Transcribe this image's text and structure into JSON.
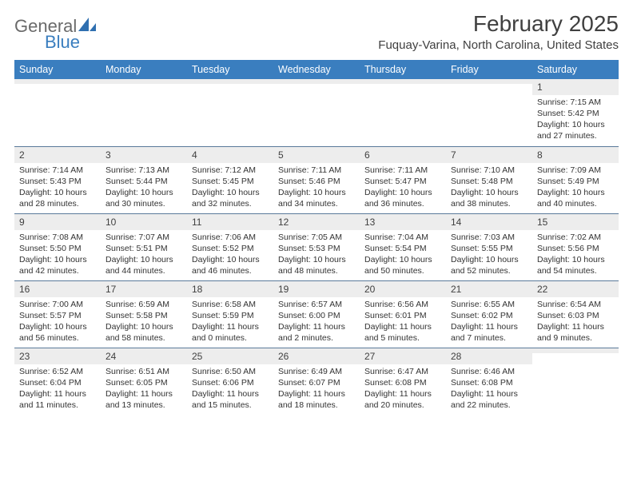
{
  "brand": {
    "part1": "General",
    "part2": "Blue"
  },
  "title": "February 2025",
  "location": "Fuquay-Varina, North Carolina, United States",
  "colors": {
    "header_bg": "#3a7ebf",
    "header_text": "#ffffff",
    "daynum_bg": "#ededed",
    "cell_border": "#5a7a9a",
    "body_text": "#333333",
    "title_text": "#404040"
  },
  "dow": [
    "Sunday",
    "Monday",
    "Tuesday",
    "Wednesday",
    "Thursday",
    "Friday",
    "Saturday"
  ],
  "weeks": [
    [
      {
        "n": "",
        "sunrise": "",
        "sunset": "",
        "daylight": ""
      },
      {
        "n": "",
        "sunrise": "",
        "sunset": "",
        "daylight": ""
      },
      {
        "n": "",
        "sunrise": "",
        "sunset": "",
        "daylight": ""
      },
      {
        "n": "",
        "sunrise": "",
        "sunset": "",
        "daylight": ""
      },
      {
        "n": "",
        "sunrise": "",
        "sunset": "",
        "daylight": ""
      },
      {
        "n": "",
        "sunrise": "",
        "sunset": "",
        "daylight": ""
      },
      {
        "n": "1",
        "sunrise": "Sunrise: 7:15 AM",
        "sunset": "Sunset: 5:42 PM",
        "daylight": "Daylight: 10 hours and 27 minutes."
      }
    ],
    [
      {
        "n": "2",
        "sunrise": "Sunrise: 7:14 AM",
        "sunset": "Sunset: 5:43 PM",
        "daylight": "Daylight: 10 hours and 28 minutes."
      },
      {
        "n": "3",
        "sunrise": "Sunrise: 7:13 AM",
        "sunset": "Sunset: 5:44 PM",
        "daylight": "Daylight: 10 hours and 30 minutes."
      },
      {
        "n": "4",
        "sunrise": "Sunrise: 7:12 AM",
        "sunset": "Sunset: 5:45 PM",
        "daylight": "Daylight: 10 hours and 32 minutes."
      },
      {
        "n": "5",
        "sunrise": "Sunrise: 7:11 AM",
        "sunset": "Sunset: 5:46 PM",
        "daylight": "Daylight: 10 hours and 34 minutes."
      },
      {
        "n": "6",
        "sunrise": "Sunrise: 7:11 AM",
        "sunset": "Sunset: 5:47 PM",
        "daylight": "Daylight: 10 hours and 36 minutes."
      },
      {
        "n": "7",
        "sunrise": "Sunrise: 7:10 AM",
        "sunset": "Sunset: 5:48 PM",
        "daylight": "Daylight: 10 hours and 38 minutes."
      },
      {
        "n": "8",
        "sunrise": "Sunrise: 7:09 AM",
        "sunset": "Sunset: 5:49 PM",
        "daylight": "Daylight: 10 hours and 40 minutes."
      }
    ],
    [
      {
        "n": "9",
        "sunrise": "Sunrise: 7:08 AM",
        "sunset": "Sunset: 5:50 PM",
        "daylight": "Daylight: 10 hours and 42 minutes."
      },
      {
        "n": "10",
        "sunrise": "Sunrise: 7:07 AM",
        "sunset": "Sunset: 5:51 PM",
        "daylight": "Daylight: 10 hours and 44 minutes."
      },
      {
        "n": "11",
        "sunrise": "Sunrise: 7:06 AM",
        "sunset": "Sunset: 5:52 PM",
        "daylight": "Daylight: 10 hours and 46 minutes."
      },
      {
        "n": "12",
        "sunrise": "Sunrise: 7:05 AM",
        "sunset": "Sunset: 5:53 PM",
        "daylight": "Daylight: 10 hours and 48 minutes."
      },
      {
        "n": "13",
        "sunrise": "Sunrise: 7:04 AM",
        "sunset": "Sunset: 5:54 PM",
        "daylight": "Daylight: 10 hours and 50 minutes."
      },
      {
        "n": "14",
        "sunrise": "Sunrise: 7:03 AM",
        "sunset": "Sunset: 5:55 PM",
        "daylight": "Daylight: 10 hours and 52 minutes."
      },
      {
        "n": "15",
        "sunrise": "Sunrise: 7:02 AM",
        "sunset": "Sunset: 5:56 PM",
        "daylight": "Daylight: 10 hours and 54 minutes."
      }
    ],
    [
      {
        "n": "16",
        "sunrise": "Sunrise: 7:00 AM",
        "sunset": "Sunset: 5:57 PM",
        "daylight": "Daylight: 10 hours and 56 minutes."
      },
      {
        "n": "17",
        "sunrise": "Sunrise: 6:59 AM",
        "sunset": "Sunset: 5:58 PM",
        "daylight": "Daylight: 10 hours and 58 minutes."
      },
      {
        "n": "18",
        "sunrise": "Sunrise: 6:58 AM",
        "sunset": "Sunset: 5:59 PM",
        "daylight": "Daylight: 11 hours and 0 minutes."
      },
      {
        "n": "19",
        "sunrise": "Sunrise: 6:57 AM",
        "sunset": "Sunset: 6:00 PM",
        "daylight": "Daylight: 11 hours and 2 minutes."
      },
      {
        "n": "20",
        "sunrise": "Sunrise: 6:56 AM",
        "sunset": "Sunset: 6:01 PM",
        "daylight": "Daylight: 11 hours and 5 minutes."
      },
      {
        "n": "21",
        "sunrise": "Sunrise: 6:55 AM",
        "sunset": "Sunset: 6:02 PM",
        "daylight": "Daylight: 11 hours and 7 minutes."
      },
      {
        "n": "22",
        "sunrise": "Sunrise: 6:54 AM",
        "sunset": "Sunset: 6:03 PM",
        "daylight": "Daylight: 11 hours and 9 minutes."
      }
    ],
    [
      {
        "n": "23",
        "sunrise": "Sunrise: 6:52 AM",
        "sunset": "Sunset: 6:04 PM",
        "daylight": "Daylight: 11 hours and 11 minutes."
      },
      {
        "n": "24",
        "sunrise": "Sunrise: 6:51 AM",
        "sunset": "Sunset: 6:05 PM",
        "daylight": "Daylight: 11 hours and 13 minutes."
      },
      {
        "n": "25",
        "sunrise": "Sunrise: 6:50 AM",
        "sunset": "Sunset: 6:06 PM",
        "daylight": "Daylight: 11 hours and 15 minutes."
      },
      {
        "n": "26",
        "sunrise": "Sunrise: 6:49 AM",
        "sunset": "Sunset: 6:07 PM",
        "daylight": "Daylight: 11 hours and 18 minutes."
      },
      {
        "n": "27",
        "sunrise": "Sunrise: 6:47 AM",
        "sunset": "Sunset: 6:08 PM",
        "daylight": "Daylight: 11 hours and 20 minutes."
      },
      {
        "n": "28",
        "sunrise": "Sunrise: 6:46 AM",
        "sunset": "Sunset: 6:08 PM",
        "daylight": "Daylight: 11 hours and 22 minutes."
      },
      {
        "n": "",
        "sunrise": "",
        "sunset": "",
        "daylight": ""
      }
    ]
  ]
}
